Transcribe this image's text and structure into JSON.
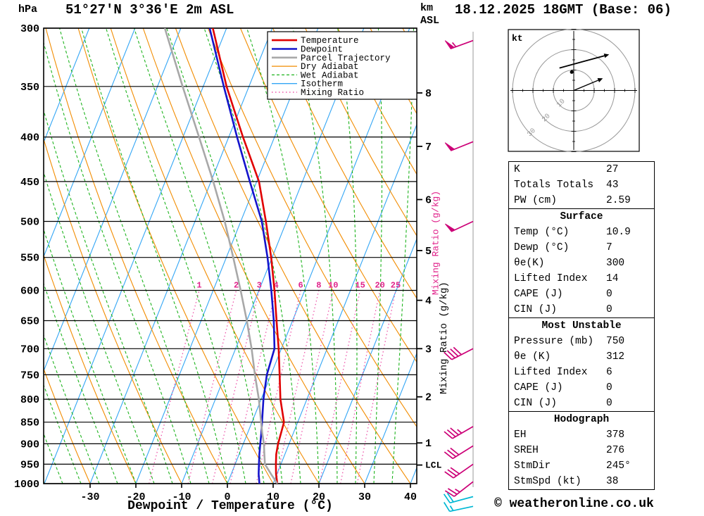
{
  "header": {
    "pressure_unit": "hPa",
    "title": "51°27'N 3°36'E 2m ASL",
    "alt_unit_top": "km",
    "alt_unit_bottom": "ASL",
    "datetime": "18.12.2025 18GMT (Base: 06)"
  },
  "footer": {
    "xlabel": "Dewpoint / Temperature (°C)",
    "copyright": "© weatheronline.co.uk"
  },
  "legend": {
    "items": [
      {
        "label": "Temperature",
        "color": "#e00000",
        "dash": "",
        "width": 2.6
      },
      {
        "label": "Dewpoint",
        "color": "#1414cc",
        "dash": "",
        "width": 2.6
      },
      {
        "label": "Parcel Trajectory",
        "color": "#a8a8a8",
        "dash": "",
        "width": 2.6
      },
      {
        "label": "Dry Adiabat",
        "color": "#f28c00",
        "dash": "",
        "width": 1.3
      },
      {
        "label": "Wet Adiabat",
        "color": "#1fb41f",
        "dash": "4,3",
        "width": 1.3
      },
      {
        "label": "Isotherm",
        "color": "#33a6f5",
        "dash": "",
        "width": 1.3
      },
      {
        "label": "Mixing Ratio",
        "color": "#ee55aa",
        "dash": "1.5,3.5",
        "width": 1.5
      }
    ]
  },
  "axes": {
    "pressure_ticks": [
      300,
      350,
      400,
      450,
      500,
      550,
      600,
      650,
      700,
      750,
      800,
      850,
      900,
      950,
      1000
    ],
    "temp_ticks": [
      -30,
      -20,
      -10,
      0,
      10,
      20,
      30,
      40
    ],
    "km_ticks": [
      {
        "km": 8,
        "hpa": 356
      },
      {
        "km": 7,
        "hpa": 410
      },
      {
        "km": 6,
        "hpa": 472
      },
      {
        "km": 5,
        "hpa": 540
      },
      {
        "km": 4,
        "hpa": 616
      },
      {
        "km": 3,
        "hpa": 700
      },
      {
        "km": 2,
        "hpa": 795
      },
      {
        "km": 1,
        "hpa": 898
      }
    ],
    "lcl": {
      "label": "LCL",
      "hpa": 952
    },
    "mixing_axis_label": "Mixing Ratio (g/kg)"
  },
  "chart_data": {
    "type": "line",
    "subtype": "skew-t-log-p",
    "title": "51°27'N 3°36'E 2m ASL",
    "xlabel": "Dewpoint / Temperature (°C)",
    "x_range_c": [
      -40,
      40
    ],
    "pressure_range_hpa": [
      300,
      1000
    ],
    "pressure_hpa": [
      1000,
      975,
      950,
      925,
      900,
      875,
      850,
      800,
      750,
      700,
      650,
      600,
      550,
      500,
      450,
      400,
      350,
      300
    ],
    "series": [
      {
        "name": "Temperature",
        "color": "#e00000",
        "values_c": [
          10.9,
          9.8,
          8.9,
          8.1,
          7.6,
          7.3,
          7.0,
          4.2,
          1.9,
          -0.6,
          -3.5,
          -6.6,
          -10.2,
          -14.5,
          -19.5,
          -26.9,
          -34.9,
          -43.0
        ]
      },
      {
        "name": "Dewpoint",
        "color": "#1414cc",
        "values_c": [
          7.0,
          6.0,
          5.2,
          4.4,
          3.7,
          3.0,
          2.2,
          0.5,
          -0.9,
          -1.5,
          -4.1,
          -7.3,
          -11.0,
          -15.4,
          -21.5,
          -28.2,
          -35.5,
          -43.7
        ]
      },
      {
        "name": "Parcel Trajectory",
        "color": "#a8a8a8",
        "values_c": [
          10.9,
          8.7,
          6.5,
          5.5,
          4.5,
          3.2,
          2.0,
          -0.5,
          -3.5,
          -6.5,
          -10.0,
          -14.0,
          -18.5,
          -23.5,
          -29.5,
          -36.5,
          -44.5,
          -53.5
        ]
      }
    ],
    "mixing_ratio_lines_gkg": [
      1,
      2,
      3,
      4,
      6,
      8,
      10,
      15,
      20,
      25
    ],
    "wind_barbs": [
      {
        "hpa": 310,
        "dir_deg": 250,
        "speed_kt": 55,
        "color": "#cc0077"
      },
      {
        "hpa": 405,
        "dir_deg": 248,
        "speed_kt": 50,
        "color": "#cc0077"
      },
      {
        "hpa": 500,
        "dir_deg": 245,
        "speed_kt": 50,
        "color": "#cc0077"
      },
      {
        "hpa": 700,
        "dir_deg": 243,
        "speed_kt": 40,
        "color": "#cc0077"
      },
      {
        "hpa": 860,
        "dir_deg": 240,
        "speed_kt": 35,
        "color": "#cc0077"
      },
      {
        "hpa": 905,
        "dir_deg": 238,
        "speed_kt": 30,
        "color": "#cc0077"
      },
      {
        "hpa": 950,
        "dir_deg": 235,
        "speed_kt": 30,
        "color": "#cc0077"
      },
      {
        "hpa": 995,
        "dir_deg": 232,
        "speed_kt": 25,
        "color": "#cc0077"
      },
      {
        "hpa": 1035,
        "dir_deg": 255,
        "speed_kt": 20,
        "color": "#00b8d4"
      },
      {
        "hpa": 1062,
        "dir_deg": 258,
        "speed_kt": 15,
        "color": "#00b8d4"
      }
    ],
    "hodograph": {
      "unit": "kt",
      "rings_kt": [
        10,
        20,
        30
      ],
      "trace_uv_kt": [
        [
          -7,
          11
        ],
        [
          4,
          14
        ],
        [
          15,
          17
        ]
      ],
      "storm_vector_uv_kt": [
        [
          0,
          0
        ],
        [
          12,
          5
        ]
      ],
      "marker_uv_kt": [
        -1,
        9
      ]
    }
  },
  "table": {
    "sections": [
      {
        "header": "",
        "rows": [
          [
            "K",
            "27"
          ],
          [
            "Totals Totals",
            "43"
          ],
          [
            "PW (cm)",
            "2.59"
          ]
        ]
      },
      {
        "header": "Surface",
        "rows": [
          [
            "Temp (°C)",
            "10.9"
          ],
          [
            "Dewp (°C)",
            "7"
          ],
          [
            "θe(K)",
            "300"
          ],
          [
            "Lifted Index",
            "14"
          ],
          [
            "CAPE (J)",
            "0"
          ],
          [
            "CIN (J)",
            "0"
          ]
        ]
      },
      {
        "header": "Most Unstable",
        "rows": [
          [
            "Pressure (mb)",
            "750"
          ],
          [
            "θe (K)",
            "312"
          ],
          [
            "Lifted Index",
            "6"
          ],
          [
            "CAPE (J)",
            "0"
          ],
          [
            "CIN (J)",
            "0"
          ]
        ]
      },
      {
        "header": "Hodograph",
        "rows": [
          [
            "EH",
            "378"
          ],
          [
            "SREH",
            "276"
          ],
          [
            "StmDir",
            "245°"
          ],
          [
            "StmSpd (kt)",
            "38"
          ]
        ]
      }
    ]
  },
  "colors": {
    "isotherm": "#33a6f5",
    "dry_adiabat": "#f28c00",
    "wet_adiabat": "#1fb41f",
    "mixing_ratio": "#ee55aa",
    "mixing_label": "#e0218a",
    "temperature": "#e00000",
    "dewpoint": "#1414cc",
    "parcel": "#a8a8a8",
    "barb_magenta": "#cc0077",
    "barb_cyan": "#00b8d4",
    "frame": "#000000"
  }
}
